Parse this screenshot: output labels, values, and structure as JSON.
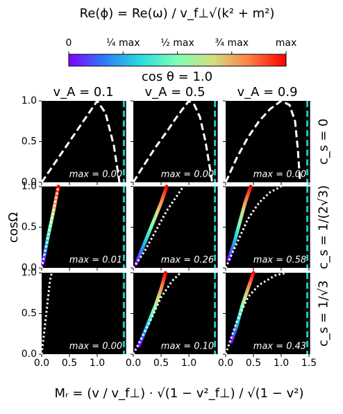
{
  "chart_data": {
    "type": "grid",
    "title": "Re(ϕ) = Re(ω) / v_f⊥√(k² + m²)",
    "colorbar": {
      "colors": [
        "#8000ff",
        "#2c7ef7",
        "#2adddd",
        "#80ffb4",
        "#d4dd80",
        "#ff7e41",
        "#ff0000"
      ],
      "lim": [
        0,
        1
      ],
      "ticks": [
        {
          "value": 0,
          "label": "0"
        },
        {
          "value": 0.25,
          "label": "¼ max"
        },
        {
          "value": 0.5,
          "label": "½ max"
        },
        {
          "value": 0.75,
          "label": "¾ max"
        },
        {
          "value": 1,
          "label": "max"
        }
      ]
    },
    "subtitle": "cos θ = 1.0",
    "ylabel": "cosΩ",
    "xlabel": "Mᵣ = (v / v_f⊥) · √(1 − v²_f⊥) / √(1 − v²)",
    "xlim": [
      0,
      1.52
    ],
    "ylim": [
      0,
      1
    ],
    "yticks": [
      {
        "value": 0,
        "label": "0.0"
      },
      {
        "value": 0.5,
        "label": "0.5"
      },
      {
        "value": 1,
        "label": "1.0"
      }
    ],
    "columns": [
      {
        "title": "v_A = 0.1",
        "xticks": [
          {
            "value": 0,
            "label": "0.0"
          },
          {
            "value": 0.5,
            "label": "0.5"
          },
          {
            "value": 1,
            "label": "1.0"
          }
        ]
      },
      {
        "title": "v_A = 0.5",
        "xticks": [
          {
            "value": 0,
            "label": "0.0"
          },
          {
            "value": 0.5,
            "label": "0.5"
          },
          {
            "value": 1,
            "label": "1.0"
          }
        ]
      },
      {
        "title": "v_A = 0.9",
        "xticks": [
          {
            "value": 0,
            "label": "0.0"
          },
          {
            "value": 0.5,
            "label": "0.5"
          },
          {
            "value": 1,
            "label": "1.0"
          },
          {
            "value": 1.5,
            "label": "1.5"
          }
        ]
      }
    ],
    "rows": [
      "c_s = 0",
      "c_s = 1/(2√3)",
      "c_s = 1/√3"
    ],
    "vline_color": "#1fc8c8",
    "panels": [
      {
        "type": "line",
        "linestyle": "dashed",
        "vline": 1.48,
        "annotation": "max = 0.00",
        "x": [
          0,
          0.2,
          0.4,
          0.6,
          0.8,
          1.0,
          1.15,
          1.3,
          1.4
        ],
        "y": [
          0,
          0.2,
          0.4,
          0.6,
          0.8,
          1.0,
          0.85,
          0.45,
          0
        ]
      },
      {
        "type": "line",
        "linestyle": "dashed",
        "vline": 1.47,
        "annotation": "max = 0.00",
        "x": [
          0,
          0.2,
          0.4,
          0.6,
          0.8,
          1.0,
          1.1,
          1.2,
          1.3,
          1.42
        ],
        "y": [
          0,
          0.22,
          0.43,
          0.62,
          0.82,
          1.0,
          0.95,
          0.8,
          0.5,
          0
        ]
      },
      {
        "type": "line",
        "linestyle": "dashed",
        "vline": 1.47,
        "annotation": "max = 0.00",
        "x": [
          0,
          0.1,
          0.2,
          0.4,
          0.6,
          0.8,
          1.0,
          1.15,
          1.25,
          1.3,
          1.34
        ],
        "y": [
          0,
          0.15,
          0.3,
          0.55,
          0.75,
          0.9,
          1.0,
          0.95,
          0.75,
          0.4,
          0
        ]
      },
      {
        "type": "line",
        "linestyle": "dotted",
        "vline": 1.48,
        "annotation": "max = 0.01",
        "x": [
          0,
          0.1,
          0.2,
          0.3
        ],
        "y": [
          0,
          0.33,
          0.66,
          1.0
        ],
        "strip_x": [
          0.02,
          0.12,
          0.22,
          0.3
        ],
        "strip_y": [
          0.05,
          0.4,
          0.72,
          1.0
        ]
      },
      {
        "type": "line",
        "linestyle": "dotted",
        "vline": 1.47,
        "annotation": "max = 0.26",
        "x": [
          0,
          0.2,
          0.4,
          0.6,
          0.9
        ],
        "y": [
          0,
          0.2,
          0.45,
          0.7,
          1.0
        ],
        "strip_x": [
          0.05,
          0.2,
          0.35,
          0.5,
          0.6
        ],
        "strip_y": [
          0.05,
          0.3,
          0.55,
          0.8,
          1.0
        ]
      },
      {
        "type": "line",
        "linestyle": "dotted",
        "vline": 1.47,
        "annotation": "max = 0.58",
        "x": [
          0,
          0.2,
          0.4,
          0.6,
          0.8,
          1.0
        ],
        "y": [
          0,
          0.3,
          0.6,
          0.8,
          0.93,
          1.0
        ],
        "strip_x": [
          0.05,
          0.15,
          0.25,
          0.35,
          0.45
        ],
        "strip_y": [
          0.1,
          0.3,
          0.55,
          0.8,
          1.0
        ]
      },
      {
        "type": "line",
        "linestyle": "dotted",
        "vline": 1.48,
        "annotation": "max = 0.00",
        "x": [
          0,
          0.05,
          0.1,
          0.15,
          0.18
        ],
        "y": [
          0,
          0.3,
          0.6,
          0.9,
          1.0
        ]
      },
      {
        "type": "line",
        "linestyle": "dotted",
        "vline": 1.47,
        "annotation": "max = 0.10",
        "x": [
          0,
          0.3,
          0.5,
          0.7,
          0.85
        ],
        "y": [
          0,
          0.4,
          0.7,
          0.9,
          1.0
        ],
        "strip_x": [
          0.1,
          0.25,
          0.4,
          0.5,
          0.58
        ],
        "strip_y": [
          0.1,
          0.35,
          0.6,
          0.8,
          1.0
        ]
      },
      {
        "type": "line",
        "linestyle": "dotted",
        "vline": 1.47,
        "annotation": "max = 0.43",
        "x": [
          0,
          0.2,
          0.4,
          0.6,
          0.9,
          1.1
        ],
        "y": [
          0,
          0.4,
          0.7,
          0.85,
          0.97,
          1.0
        ],
        "strip_x": [
          0.1,
          0.2,
          0.3,
          0.4,
          0.5
        ],
        "strip_y": [
          0.15,
          0.35,
          0.6,
          0.8,
          1.0
        ]
      }
    ]
  }
}
